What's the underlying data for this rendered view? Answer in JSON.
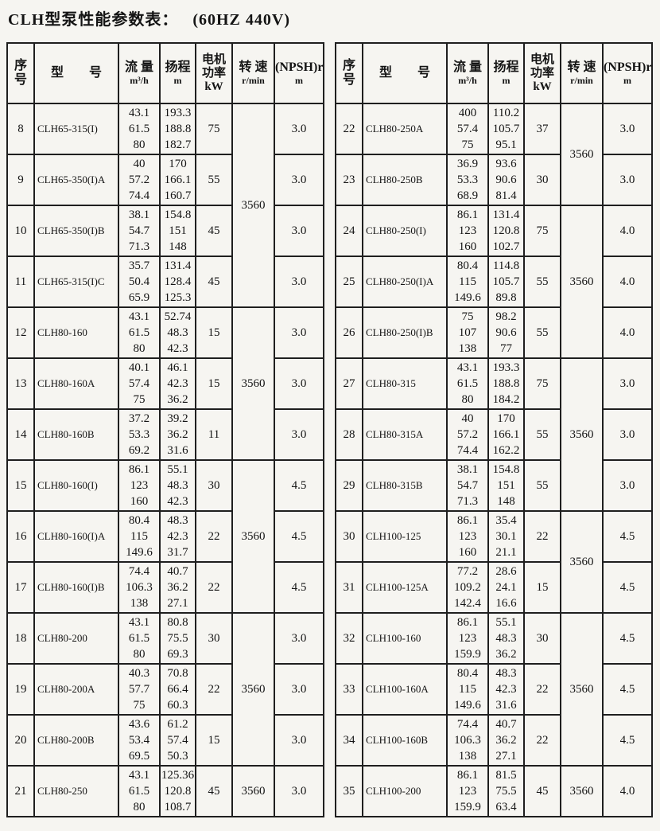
{
  "page": {
    "title": "CLH型泵性能参数表：",
    "title_note": "(60HZ 440V)"
  },
  "columns": {
    "no1": "序",
    "no2": "号",
    "model": "型　　号",
    "flow": "流 量",
    "flow_unit": "m³/h",
    "head": "扬程",
    "head_unit": "m",
    "power1": "电机",
    "power2": "功率",
    "power3": "kW",
    "speed": "转 速",
    "speed_unit": "r/min",
    "npsh": "(NPSH)r",
    "npsh_unit": "m"
  },
  "left_table": {
    "rows": [
      {
        "no": "8",
        "model": "CLH65-315(I)",
        "flow": [
          "43.1",
          "61.5",
          "80"
        ],
        "head": [
          "193.3",
          "188.8",
          "182.7"
        ],
        "power": "75",
        "speed": "3560",
        "speed_span": 4,
        "npsh": "3.0"
      },
      {
        "no": "9",
        "model": "CLH65-350(I)A",
        "flow": [
          "40",
          "57.2",
          "74.4"
        ],
        "head": [
          "170",
          "166.1",
          "160.7"
        ],
        "power": "55",
        "speed": null,
        "speed_span": 0,
        "npsh": "3.0"
      },
      {
        "no": "10",
        "model": "CLH65-350(I)B",
        "flow": [
          "38.1",
          "54.7",
          "71.3"
        ],
        "head": [
          "154.8",
          "151",
          "148"
        ],
        "power": "45",
        "speed": null,
        "speed_span": 0,
        "npsh": "3.0"
      },
      {
        "no": "11",
        "model": "CLH65-315(I)C",
        "flow": [
          "35.7",
          "50.4",
          "65.9"
        ],
        "head": [
          "131.4",
          "128.4",
          "125.3"
        ],
        "power": "45",
        "speed": null,
        "speed_span": 0,
        "npsh": "3.0"
      },
      {
        "no": "12",
        "model": "CLH80-160",
        "flow": [
          "43.1",
          "61.5",
          "80"
        ],
        "head": [
          "52.74",
          "48.3",
          "42.3"
        ],
        "power": "15",
        "speed": "3560",
        "speed_span": 3,
        "npsh": "3.0"
      },
      {
        "no": "13",
        "model": "CLH80-160A",
        "flow": [
          "40.1",
          "57.4",
          "75"
        ],
        "head": [
          "46.1",
          "42.3",
          "36.2"
        ],
        "power": "15",
        "speed": null,
        "speed_span": 0,
        "npsh": "3.0"
      },
      {
        "no": "14",
        "model": "CLH80-160B",
        "flow": [
          "37.2",
          "53.3",
          "69.2"
        ],
        "head": [
          "39.2",
          "36.2",
          "31.6"
        ],
        "power": "11",
        "speed": null,
        "speed_span": 0,
        "npsh": "3.0"
      },
      {
        "no": "15",
        "model": "CLH80-160(I)",
        "flow": [
          "86.1",
          "123",
          "160"
        ],
        "head": [
          "55.1",
          "48.3",
          "42.3"
        ],
        "power": "30",
        "speed": "3560",
        "speed_span": 3,
        "npsh": "4.5"
      },
      {
        "no": "16",
        "model": "CLH80-160(I)A",
        "flow": [
          "80.4",
          "115",
          "149.6"
        ],
        "head": [
          "48.3",
          "42.3",
          "31.7"
        ],
        "power": "22",
        "speed": null,
        "speed_span": 0,
        "npsh": "4.5"
      },
      {
        "no": "17",
        "model": "CLH80-160(I)B",
        "flow": [
          "74.4",
          "106.3",
          "138"
        ],
        "head": [
          "40.7",
          "36.2",
          "27.1"
        ],
        "power": "22",
        "speed": null,
        "speed_span": 0,
        "npsh": "4.5"
      },
      {
        "no": "18",
        "model": "CLH80-200",
        "flow": [
          "43.1",
          "61.5",
          "80"
        ],
        "head": [
          "80.8",
          "75.5",
          "69.3"
        ],
        "power": "30",
        "speed": "3560",
        "speed_span": 3,
        "npsh": "3.0"
      },
      {
        "no": "19",
        "model": "CLH80-200A",
        "flow": [
          "40.3",
          "57.7",
          "75"
        ],
        "head": [
          "70.8",
          "66.4",
          "60.3"
        ],
        "power": "22",
        "speed": null,
        "speed_span": 0,
        "npsh": "3.0"
      },
      {
        "no": "20",
        "model": "CLH80-200B",
        "flow": [
          "43.6",
          "53.4",
          "69.5"
        ],
        "head": [
          "61.2",
          "57.4",
          "50.3"
        ],
        "power": "15",
        "speed": null,
        "speed_span": 0,
        "npsh": "3.0"
      },
      {
        "no": "21",
        "model": "CLH80-250",
        "flow": [
          "43.1",
          "61.5",
          "80"
        ],
        "head": [
          "125.36",
          "120.8",
          "108.7"
        ],
        "power": "45",
        "speed": "3560",
        "speed_span": 1,
        "npsh": "3.0"
      }
    ]
  },
  "right_table": {
    "rows": [
      {
        "no": "22",
        "model": "CLH80-250A",
        "flow": [
          "400",
          "57.4",
          "75"
        ],
        "head": [
          "110.2",
          "105.7",
          "95.1"
        ],
        "power": "37",
        "speed": "3560",
        "speed_span": 2,
        "npsh": "3.0"
      },
      {
        "no": "23",
        "model": "CLH80-250B",
        "flow": [
          "36.9",
          "53.3",
          "68.9"
        ],
        "head": [
          "93.6",
          "90.6",
          "81.4"
        ],
        "power": "30",
        "speed": null,
        "speed_span": 0,
        "npsh": "3.0"
      },
      {
        "no": "24",
        "model": "CLH80-250(I)",
        "flow": [
          "86.1",
          "123",
          "160"
        ],
        "head": [
          "131.4",
          "120.8",
          "102.7"
        ],
        "power": "75",
        "speed": "3560",
        "speed_span": 3,
        "npsh": "4.0"
      },
      {
        "no": "25",
        "model": "CLH80-250(I)A",
        "flow": [
          "80.4",
          "115",
          "149.6"
        ],
        "head": [
          "114.8",
          "105.7",
          "89.8"
        ],
        "power": "55",
        "speed": null,
        "speed_span": 0,
        "npsh": "4.0"
      },
      {
        "no": "26",
        "model": "CLH80-250(I)B",
        "flow": [
          "75",
          "107",
          "138"
        ],
        "head": [
          "98.2",
          "90.6",
          "77"
        ],
        "power": "55",
        "speed": null,
        "speed_span": 0,
        "npsh": "4.0"
      },
      {
        "no": "27",
        "model": "CLH80-315",
        "flow": [
          "43.1",
          "61.5",
          "80"
        ],
        "head": [
          "193.3",
          "188.8",
          "184.2"
        ],
        "power": "75",
        "speed": "3560",
        "speed_span": 3,
        "npsh": "3.0"
      },
      {
        "no": "28",
        "model": "CLH80-315A",
        "flow": [
          "40",
          "57.2",
          "74.4"
        ],
        "head": [
          "170",
          "166.1",
          "162.2"
        ],
        "power": "55",
        "speed": null,
        "speed_span": 0,
        "npsh": "3.0"
      },
      {
        "no": "29",
        "model": "CLH80-315B",
        "flow": [
          "38.1",
          "54.7",
          "71.3"
        ],
        "head": [
          "154.8",
          "151",
          "148"
        ],
        "power": "55",
        "speed": null,
        "speed_span": 0,
        "npsh": "3.0"
      },
      {
        "no": "30",
        "model": "CLH100-125",
        "flow": [
          "86.1",
          "123",
          "160"
        ],
        "head": [
          "35.4",
          "30.1",
          "21.1"
        ],
        "power": "22",
        "speed": "3560",
        "speed_span": 2,
        "npsh": "4.5"
      },
      {
        "no": "31",
        "model": "CLH100-125A",
        "flow": [
          "77.2",
          "109.2",
          "142.4"
        ],
        "head": [
          "28.6",
          "24.1",
          "16.6"
        ],
        "power": "15",
        "speed": null,
        "speed_span": 0,
        "npsh": "4.5"
      },
      {
        "no": "32",
        "model": "CLH100-160",
        "flow": [
          "86.1",
          "123",
          "159.9"
        ],
        "head": [
          "55.1",
          "48.3",
          "36.2"
        ],
        "power": "30",
        "speed": "3560",
        "speed_span": 3,
        "npsh": "4.5"
      },
      {
        "no": "33",
        "model": "CLH100-160A",
        "flow": [
          "80.4",
          "115",
          "149.6"
        ],
        "head": [
          "48.3",
          "42.3",
          "31.6"
        ],
        "power": "22",
        "speed": null,
        "speed_span": 0,
        "npsh": "4.5"
      },
      {
        "no": "34",
        "model": "CLH100-160B",
        "flow": [
          "74.4",
          "106.3",
          "138"
        ],
        "head": [
          "40.7",
          "36.2",
          "27.1"
        ],
        "power": "22",
        "speed": null,
        "speed_span": 0,
        "npsh": "4.5"
      },
      {
        "no": "35",
        "model": "CLH100-200",
        "flow": [
          "86.1",
          "123",
          "159.9"
        ],
        "head": [
          "81.5",
          "75.5",
          "63.4"
        ],
        "power": "45",
        "speed": "3560",
        "speed_span": 1,
        "npsh": "4.0"
      }
    ]
  }
}
